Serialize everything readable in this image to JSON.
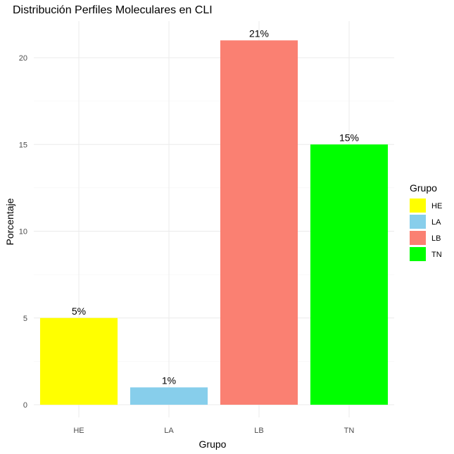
{
  "chart_data": {
    "type": "bar",
    "title": "Distribución Perfiles Moleculares en CLI",
    "xlabel": "Grupo",
    "ylabel": "Porcentaje",
    "categories": [
      "HE",
      "LA",
      "LB",
      "TN"
    ],
    "values": [
      5,
      1,
      21,
      15
    ],
    "data_labels": [
      "5%",
      "1%",
      "21%",
      "15%"
    ],
    "colors": [
      "#ffff00",
      "#87ceeb",
      "#fa8072",
      "#00ff00"
    ],
    "y_ticks": [
      0,
      5,
      10,
      15,
      20
    ],
    "ylim": [
      0,
      22
    ],
    "grid": true,
    "legend": {
      "title": "Grupo",
      "position": "right",
      "entries": [
        "HE",
        "LA",
        "LB",
        "TN"
      ]
    }
  }
}
